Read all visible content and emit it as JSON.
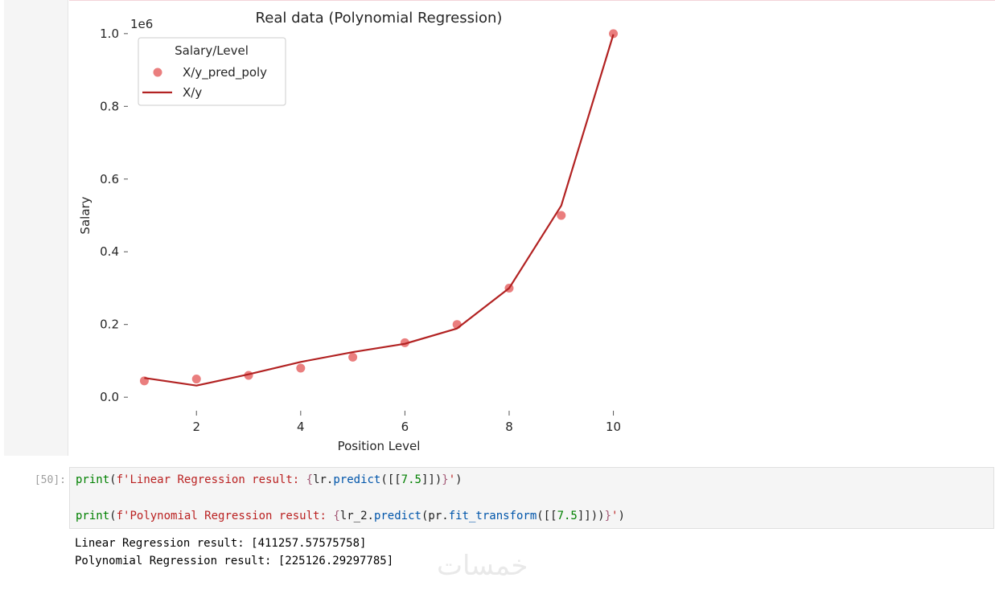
{
  "notebook": {
    "code_prompt": "[50]:",
    "code_lines": [
      {
        "fn": "print",
        "open": "(",
        "fprefix": "f",
        "q": "'",
        "text": "Linear Regression result: ",
        "lb": "{",
        "var": "lr",
        "dot": ".",
        "meth": "predict",
        "args_open": "(",
        "arr_open": "[[",
        "num": "7.5",
        "arr_close": "]]",
        "args_close": ")",
        "rb": "}",
        "q2": "'",
        "close": ")"
      },
      {
        "fn": "print",
        "open": "(",
        "fprefix": "f",
        "q": "'",
        "text": "Polynomial Regression result: ",
        "lb": "{",
        "var": "lr_2",
        "dot": ".",
        "meth": "predict",
        "args_open": "(",
        "inner_var": "pr",
        "inner_dot": ".",
        "inner_meth": "fit_transform",
        "inner_open": "(",
        "arr_open": "[[",
        "num": "7.5",
        "arr_close": "]]",
        "inner_close": ")",
        "args_close": ")",
        "rb": "}",
        "q2": "'",
        "close": ")"
      }
    ],
    "output_lines": [
      "Linear Regression result: [411257.57575758]",
      "Polynomial Regression result: [225126.29297785]"
    ],
    "watermark": "خمسات"
  },
  "chart_data": {
    "type": "line",
    "title": "Real data (Polynomial Regression)",
    "xlabel": "Position Level",
    "ylabel": "Salary",
    "y_offset_label": "1e6",
    "xlim": [
      0.7,
      10.3
    ],
    "ylim": [
      -0.035,
      1.035
    ],
    "xticks": [
      2,
      4,
      6,
      8,
      10
    ],
    "yticks": [
      0.0,
      0.2,
      0.4,
      0.6,
      0.8,
      1.0
    ],
    "ytick_labels": [
      "0.0",
      "0.2",
      "0.4",
      "0.6",
      "0.8",
      "1.0"
    ],
    "legend": {
      "title": "Salary/Level",
      "position": "top-left"
    },
    "series": [
      {
        "name": "X/y_pred_poly",
        "kind": "scatter",
        "color": "#e87070",
        "x": [
          1,
          2,
          3,
          4,
          5,
          6,
          7,
          8,
          9,
          10
        ],
        "y": [
          0.045,
          0.05,
          0.06,
          0.08,
          0.11,
          0.15,
          0.2,
          0.3,
          0.5,
          1.0
        ]
      },
      {
        "name": "X/y",
        "kind": "line",
        "color": "#b22222",
        "x": [
          1,
          2,
          3,
          4,
          5,
          6,
          7,
          8,
          9,
          10
        ],
        "y": [
          0.053,
          0.032,
          0.063,
          0.097,
          0.124,
          0.147,
          0.189,
          0.3,
          0.527,
          0.998
        ]
      }
    ],
    "colors": {
      "axis": "#555555",
      "text": "#262626"
    }
  }
}
